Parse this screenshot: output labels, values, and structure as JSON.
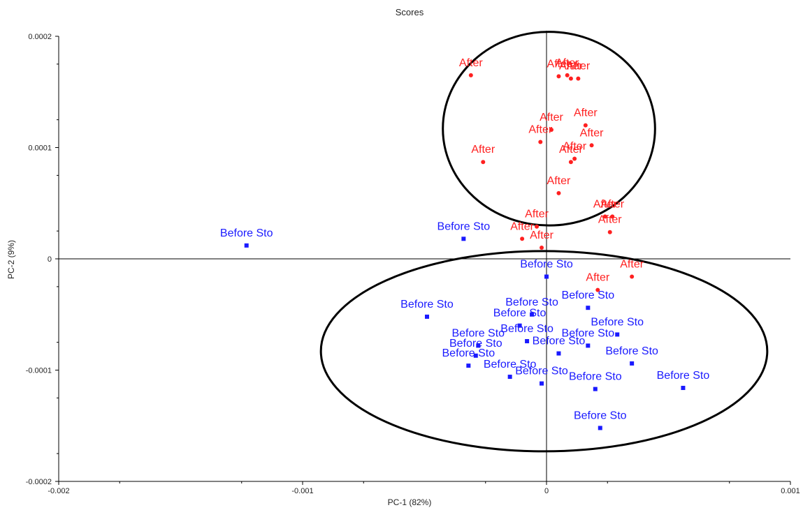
{
  "chart_data": {
    "type": "scatter",
    "title": "Scores",
    "xlabel": "PC-1 (82%)",
    "ylabel": "PC-2 (9%)",
    "xlim": [
      -0.002,
      0.001
    ],
    "ylim": [
      -0.0002,
      0.0002
    ],
    "x_ticks": [
      -0.002,
      -0.001,
      0,
      0.001
    ],
    "x_tick_labels": [
      "-0.002",
      "-0.001",
      "0",
      "0.001"
    ],
    "y_ticks": [
      -0.0002,
      -0.0001,
      0,
      0.0001,
      0.0002
    ],
    "y_tick_labels": [
      "-0.0002",
      "-0.0001",
      "0",
      "0.0001",
      "0.0002"
    ],
    "grid": false,
    "colors": {
      "after": "#ff2020",
      "before": "#1a1aff",
      "ellipse": "#000000"
    },
    "series": [
      {
        "label": "After",
        "color": "#ff2020",
        "marker": "circle",
        "points": [
          [
            -0.00031,
            0.000165
          ],
          [
            5e-05,
            0.000164
          ],
          [
            8.5e-05,
            0.000165
          ],
          [
            0.0001,
            0.000162
          ],
          [
            0.00013,
            0.000162
          ],
          [
            0.00016,
            0.00012
          ],
          [
            2e-05,
            0.000116
          ],
          [
            -2.5e-05,
            0.000105
          ],
          [
            0.000185,
            0.000102
          ],
          [
            -0.00026,
            8.7e-05
          ],
          [
            0.000115,
            9e-05
          ],
          [
            0.0001,
            8.7e-05
          ],
          [
            5e-05,
            5.9e-05
          ],
          [
            0.00024,
            3.8e-05
          ],
          [
            0.00027,
            3.8e-05
          ],
          [
            0.00026,
            2.4e-05
          ],
          [
            -4e-05,
            2.9e-05
          ],
          [
            -0.0001,
            1.8e-05
          ],
          [
            -2e-05,
            1e-05
          ],
          [
            0.00035,
            -1.6e-05
          ],
          [
            0.00021,
            -2.8e-05
          ]
        ]
      },
      {
        "label": "Before Sto",
        "color": "#1a1aff",
        "marker": "square",
        "points": [
          [
            -0.00123,
            1.2e-05
          ],
          [
            -0.00034,
            1.8e-05
          ],
          [
            0.0,
            -1.6e-05
          ],
          [
            -0.00049,
            -5.2e-05
          ],
          [
            0.00017,
            -4.4e-05
          ],
          [
            -6e-05,
            -5e-05
          ],
          [
            -0.00011,
            -6e-05
          ],
          [
            -8e-05,
            -7.4e-05
          ],
          [
            0.00029,
            -6.8e-05
          ],
          [
            -0.00028,
            -7.8e-05
          ],
          [
            5e-05,
            -8.5e-05
          ],
          [
            0.00017,
            -7.8e-05
          ],
          [
            -0.00029,
            -8.7e-05
          ],
          [
            -0.00032,
            -9.6e-05
          ],
          [
            0.00035,
            -9.4e-05
          ],
          [
            -0.00015,
            -0.000106
          ],
          [
            -2e-05,
            -0.000112
          ],
          [
            0.0002,
            -0.000117
          ],
          [
            0.00056,
            -0.000116
          ],
          [
            0.00022,
            -0.000152
          ]
        ]
      }
    ],
    "ellipses": [
      {
        "cx": 1e-05,
        "cy": 0.000117,
        "rx": 0.000435,
        "ry": 8.7e-05
      },
      {
        "cx": -1e-05,
        "cy": -8.3e-05,
        "rx": 0.000915,
        "ry": 9e-05
      }
    ]
  }
}
